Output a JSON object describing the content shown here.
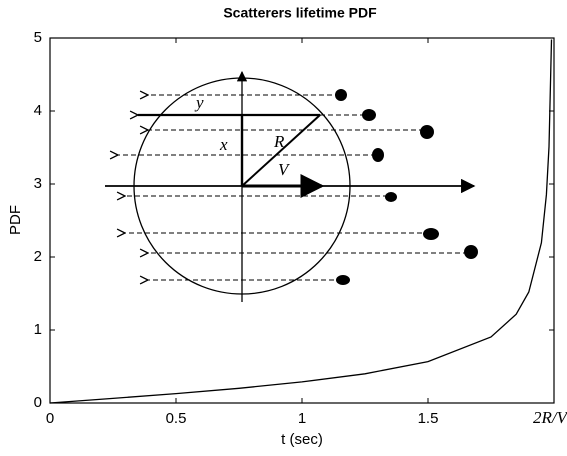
{
  "chart_data": {
    "type": "line",
    "title": "Scatterers lifetime PDF",
    "xlabel": "t (sec)",
    "ylabel": "PDF",
    "annotations": [
      "y",
      "x",
      "R",
      "V"
    ],
    "x": [
      0,
      0.25,
      0.5,
      0.75,
      1,
      1.25,
      1.5,
      1.75,
      1.85,
      1.9,
      1.95,
      1.97,
      1.98,
      1.99
    ],
    "values": [
      0,
      0.063,
      0.129,
      0.202,
      0.289,
      0.4,
      0.567,
      0.904,
      1.217,
      1.521,
      2.194,
      2.854,
      3.509,
      4.98
    ],
    "color": "#000000",
    "xlim": [
      0,
      2
    ],
    "ylim": [
      0,
      5
    ],
    "xticks": [
      0,
      0.5,
      1,
      1.5,
      {
        "value": 2,
        "label": "2R/V"
      }
    ],
    "yticks": [
      0,
      1,
      2,
      3,
      4,
      5
    ],
    "grid": false
  }
}
